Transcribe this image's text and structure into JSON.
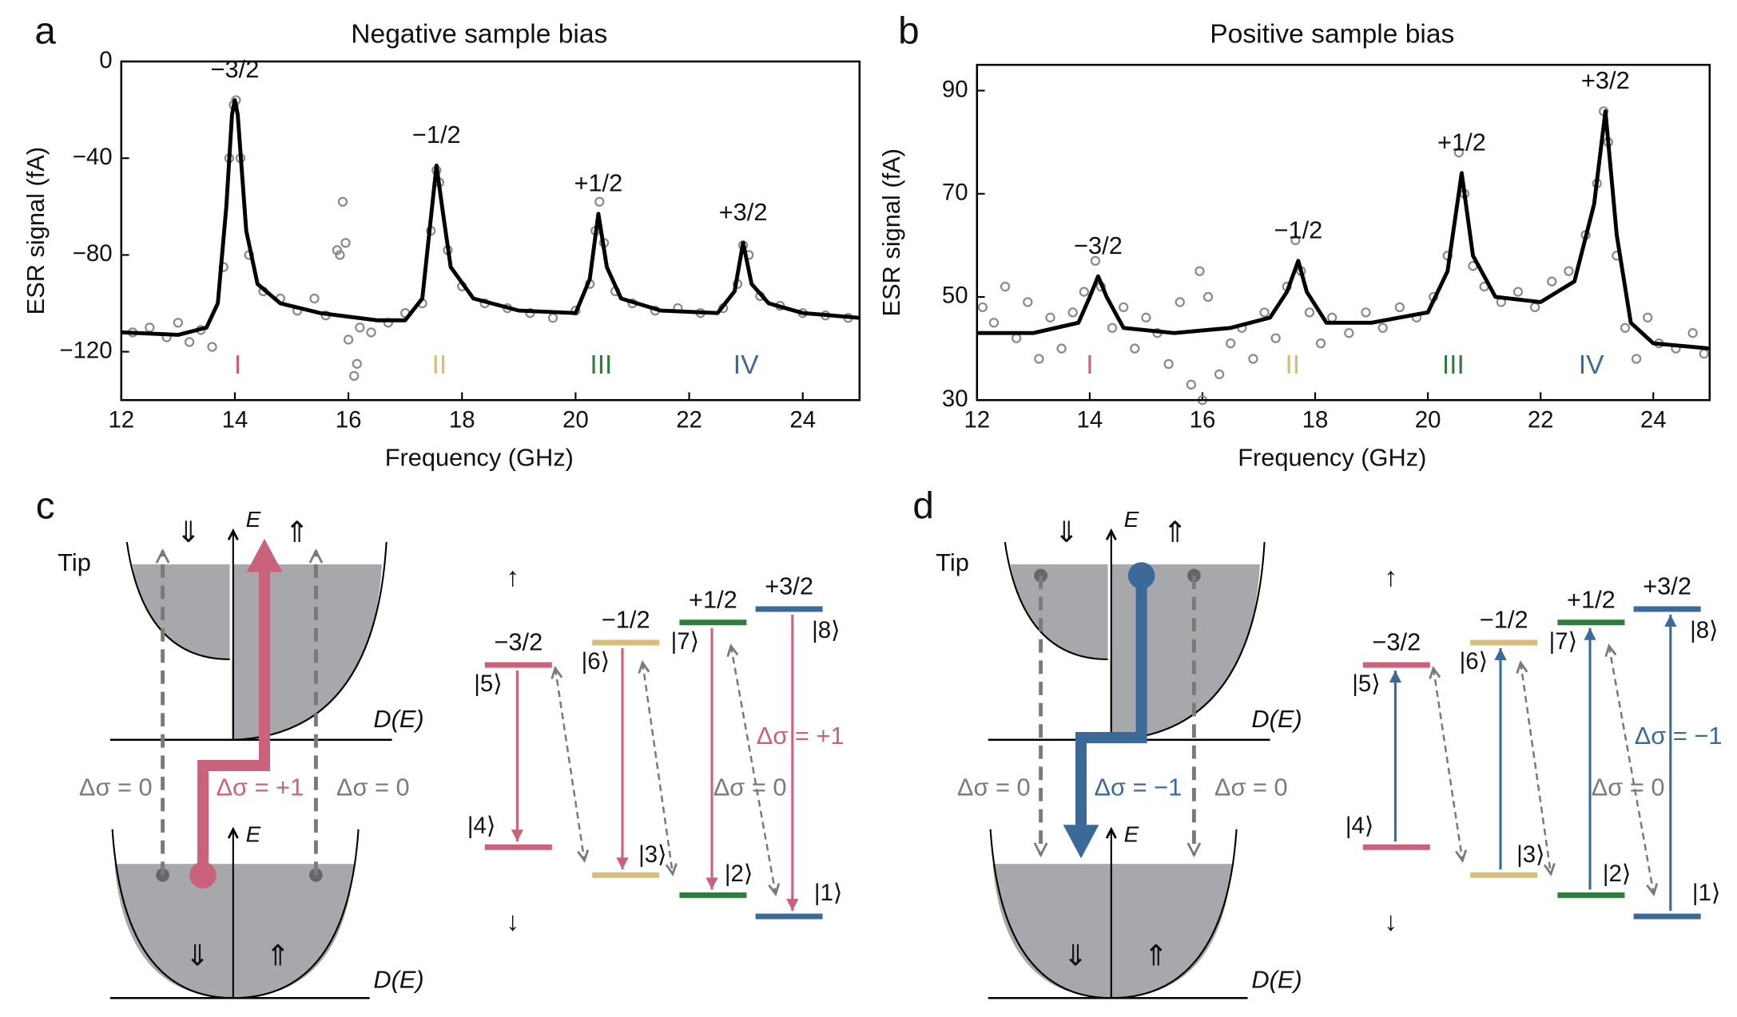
{
  "chart_data": [
    {
      "type": "scatter",
      "panel_label": "a",
      "title": "Negative sample bias",
      "xlabel": "Frequency (GHz)",
      "ylabel": "ESR signal (fA)",
      "xlim": [
        12,
        25
      ],
      "ylim": [
        -140,
        0
      ],
      "xticks": [
        12,
        14,
        16,
        18,
        20,
        22,
        24
      ],
      "yticks": [
        0,
        {
          "value": -40,
          "label": "−40"
        },
        {
          "value": -80,
          "label": "−80"
        },
        {
          "value": -120,
          "label": "−120"
        }
      ],
      "series": [
        {
          "type": "scatter",
          "color": "#8a8a8a",
          "x": [
            12.2,
            12.5,
            12.8,
            13.0,
            13.2,
            13.4,
            13.6,
            13.8,
            13.9,
            13.98,
            14.02,
            14.1,
            14.25,
            14.5,
            14.8,
            15.1,
            15.4,
            15.6,
            15.8,
            15.85,
            15.9,
            15.95,
            16.0,
            16.1,
            16.15,
            16.2,
            16.4,
            16.7,
            17.0,
            17.3,
            17.45,
            17.55,
            17.6,
            17.75,
            18.0,
            18.4,
            18.8,
            19.2,
            19.6,
            20.0,
            20.25,
            20.35,
            20.42,
            20.5,
            20.7,
            21.0,
            21.4,
            21.8,
            22.2,
            22.6,
            22.85,
            22.95,
            23.05,
            23.25,
            23.6,
            24.0,
            24.4,
            24.8
          ],
          "values": [
            -112,
            -110,
            -114,
            -108,
            -116,
            -111,
            -118,
            -85,
            -40,
            -18,
            -16,
            -40,
            -80,
            -95,
            -98,
            -103,
            -98,
            -105,
            -78,
            -80,
            -58,
            -75,
            -115,
            -130,
            -125,
            -110,
            -112,
            -108,
            -104,
            -100,
            -70,
            -45,
            -50,
            -78,
            -93,
            -100,
            -102,
            -104,
            -106,
            -103,
            -92,
            -70,
            -58,
            -75,
            -95,
            -100,
            -103,
            -102,
            -104,
            -102,
            -92,
            -76,
            -80,
            -97,
            -101,
            -104,
            -105,
            -106
          ]
        },
        {
          "type": "line",
          "color": "#000000",
          "x": [
            12,
            13,
            13.5,
            13.7,
            13.85,
            13.95,
            14.0,
            14.05,
            14.2,
            14.4,
            14.8,
            15.5,
            16.5,
            17.0,
            17.3,
            17.45,
            17.55,
            17.65,
            17.8,
            18.2,
            19,
            20,
            20.25,
            20.4,
            20.55,
            20.8,
            21.5,
            22.5,
            22.8,
            22.95,
            23.1,
            23.4,
            24,
            25
          ],
          "values": [
            -112,
            -113,
            -110,
            -100,
            -60,
            -22,
            -16,
            -22,
            -70,
            -92,
            -100,
            -104,
            -107,
            -107,
            -98,
            -65,
            -43,
            -60,
            -85,
            -98,
            -103,
            -104,
            -90,
            -63,
            -85,
            -98,
            -103,
            -104,
            -95,
            -75,
            -92,
            -100,
            -104,
            -106
          ]
        }
      ],
      "peaks": [
        {
          "label": "−3/2",
          "x": 14.0,
          "y": -16
        },
        {
          "label": "−1/2",
          "x": 17.55,
          "y": -43
        },
        {
          "label": "+1/2",
          "x": 20.4,
          "y": -63
        },
        {
          "label": "+3/2",
          "x": 22.95,
          "y": -75
        }
      ],
      "lines": [
        {
          "label": "I",
          "x": 14.05,
          "color": "#c9627a"
        },
        {
          "label": "II",
          "x": 17.6,
          "color": "#d6bd78"
        },
        {
          "label": "III",
          "x": 20.45,
          "color": "#2e7d3e"
        },
        {
          "label": "IV",
          "x": 23.0,
          "color": "#3b6a99"
        }
      ]
    },
    {
      "type": "scatter",
      "panel_label": "b",
      "title": "Positive sample bias",
      "xlabel": "Frequency (GHz)",
      "ylabel": "ESR signal (fA)",
      "xlim": [
        12,
        25
      ],
      "ylim": [
        30,
        95
      ],
      "xticks": [
        12,
        14,
        16,
        18,
        20,
        22,
        24
      ],
      "yticks": [
        30,
        50,
        70,
        90
      ],
      "series": [
        {
          "type": "scatter",
          "color": "#8a8a8a",
          "x": [
            12.1,
            12.3,
            12.5,
            12.7,
            12.9,
            13.1,
            13.3,
            13.5,
            13.7,
            13.9,
            14.1,
            14.2,
            14.4,
            14.6,
            14.8,
            15.0,
            15.2,
            15.4,
            15.6,
            15.8,
            15.95,
            16.0,
            16.1,
            16.3,
            16.5,
            16.7,
            16.9,
            17.1,
            17.3,
            17.5,
            17.65,
            17.75,
            17.9,
            18.1,
            18.3,
            18.6,
            18.9,
            19.2,
            19.5,
            19.8,
            20.1,
            20.35,
            20.55,
            20.65,
            20.8,
            21.0,
            21.3,
            21.6,
            21.9,
            22.2,
            22.5,
            22.8,
            23.0,
            23.12,
            23.2,
            23.35,
            23.5,
            23.7,
            23.9,
            24.1,
            24.4,
            24.7,
            24.9
          ],
          "values": [
            48,
            45,
            52,
            42,
            49,
            38,
            46,
            40,
            47,
            51,
            57,
            52,
            44,
            48,
            40,
            46,
            43,
            37,
            49,
            33,
            55,
            30,
            50,
            35,
            41,
            44,
            38,
            47,
            42,
            52,
            61,
            55,
            47,
            41,
            46,
            43,
            47,
            44,
            48,
            46,
            50,
            58,
            78,
            70,
            56,
            52,
            49,
            51,
            48,
            53,
            55,
            62,
            72,
            86,
            80,
            58,
            44,
            38,
            46,
            41,
            40,
            43,
            39
          ]
        },
        {
          "type": "line",
          "color": "#000000",
          "x": [
            12,
            13,
            13.8,
            14.0,
            14.15,
            14.3,
            14.6,
            15.5,
            16.5,
            17.2,
            17.5,
            17.7,
            17.85,
            18.2,
            19,
            20,
            20.35,
            20.6,
            20.8,
            21.2,
            22,
            22.6,
            22.95,
            23.15,
            23.35,
            23.6,
            24,
            25
          ],
          "values": [
            43,
            43,
            45,
            50,
            54,
            50,
            44,
            43,
            44,
            46,
            51,
            57,
            51,
            45,
            45,
            47,
            55,
            74,
            58,
            50,
            49,
            53,
            68,
            86,
            62,
            45,
            41,
            40
          ]
        }
      ],
      "peaks": [
        {
          "label": "−3/2",
          "x": 14.15,
          "y": 54
        },
        {
          "label": "−1/2",
          "x": 17.7,
          "y": 57
        },
        {
          "label": "+1/2",
          "x": 20.6,
          "y": 74
        },
        {
          "label": "+3/2",
          "x": 23.15,
          "y": 86
        }
      ],
      "lines": [
        {
          "label": "I",
          "x": 14.0,
          "color": "#c9627a"
        },
        {
          "label": "II",
          "x": 17.6,
          "color": "#d6bd78"
        },
        {
          "label": "III",
          "x": 20.45,
          "color": "#2e7d3e"
        },
        {
          "label": "IV",
          "x": 22.9,
          "color": "#3b6a99"
        }
      ]
    }
  ],
  "diagrams": [
    {
      "label": "c",
      "color": "#c9627a",
      "direction": "up",
      "tip": "Tip",
      "tip_down": "⇓",
      "tip_up": "⇑",
      "sample_down": "⇓",
      "sample_up": "⇑",
      "energy_tip": "E",
      "energy_sample": "E",
      "dos_tip": "D(E)",
      "dos_sample": "D(E)",
      "delta_left": "Δσ = 0",
      "delta_center": "Δσ = +1",
      "delta_right": "Δσ = 0",
      "spin_up": "↑",
      "spin_down": "↓",
      "delta_solid": "Δσ = +1",
      "delta_dashed": "Δσ = 0",
      "levels": [
        {
          "label": "−3/2",
          "upper": "|5⟩",
          "lower": "|4⟩",
          "color": "#c9627a"
        },
        {
          "label": "−1/2",
          "upper": "|6⟩",
          "lower": "|3⟩",
          "color": "#d6bd78"
        },
        {
          "label": "+1/2",
          "upper": "|7⟩",
          "lower": "|2⟩",
          "color": "#2e7d3e"
        },
        {
          "label": "+3/2",
          "upper": "|8⟩",
          "lower": "|1⟩",
          "color": "#3b6a99"
        }
      ]
    },
    {
      "label": "d",
      "color": "#3b6a99",
      "direction": "down",
      "tip": "Tip",
      "tip_down": "⇓",
      "tip_up": "⇑",
      "sample_down": "⇓",
      "sample_up": "⇑",
      "energy_tip": "E",
      "energy_sample": "E",
      "dos_tip": "D(E)",
      "dos_sample": "D(E)",
      "delta_left": "Δσ = 0",
      "delta_center": "Δσ = −1",
      "delta_right": "Δσ = 0",
      "spin_up": "↑",
      "spin_down": "↓",
      "delta_solid": "Δσ = −1",
      "delta_dashed": "Δσ = 0",
      "levels": [
        {
          "label": "−3/2",
          "upper": "|5⟩",
          "lower": "|4⟩",
          "color": "#c9627a"
        },
        {
          "label": "−1/2",
          "upper": "|6⟩",
          "lower": "|3⟩",
          "color": "#d6bd78"
        },
        {
          "label": "+1/2",
          "upper": "|7⟩",
          "lower": "|2⟩",
          "color": "#2e7d3e"
        },
        {
          "label": "+3/2",
          "upper": "|8⟩",
          "lower": "|1⟩",
          "color": "#3b6a99"
        }
      ]
    }
  ]
}
